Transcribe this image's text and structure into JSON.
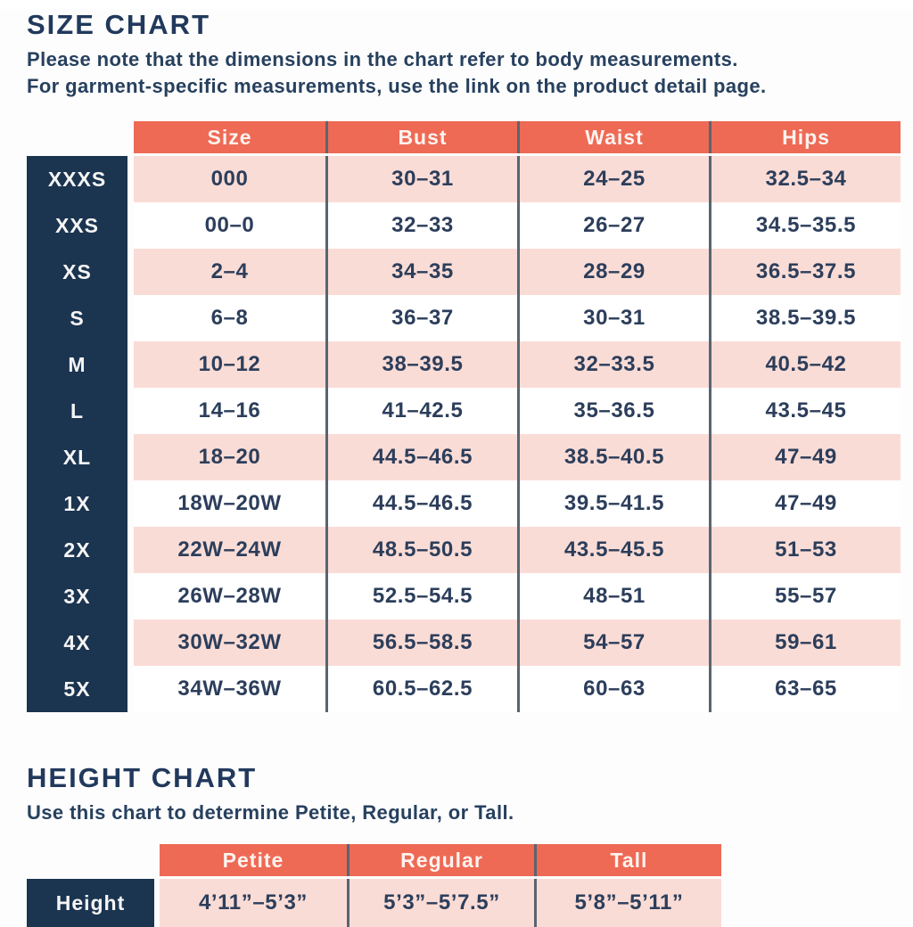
{
  "colors": {
    "header_coral": "#ee6a55",
    "row_pink": "#fadcd6",
    "label_navy": "#1b3450",
    "text_navy": "#27405e",
    "divider_slate": "#5a6470"
  },
  "size_chart": {
    "title": "SIZE CHART",
    "note_line1": "Please note that the dimensions in the chart refer to body measurements.",
    "note_line2": "For garment-specific measurements, use the link on the product detail page.",
    "columns": [
      "Size",
      "Bust",
      "Waist",
      "Hips"
    ],
    "rows": [
      {
        "label": "XXXS",
        "cells": [
          "000",
          "30–31",
          "24–25",
          "32.5–34"
        ]
      },
      {
        "label": "XXS",
        "cells": [
          "00–0",
          "32–33",
          "26–27",
          "34.5–35.5"
        ]
      },
      {
        "label": "XS",
        "cells": [
          "2–4",
          "34–35",
          "28–29",
          "36.5–37.5"
        ]
      },
      {
        "label": "S",
        "cells": [
          "6–8",
          "36–37",
          "30–31",
          "38.5–39.5"
        ]
      },
      {
        "label": "M",
        "cells": [
          "10–12",
          "38–39.5",
          "32–33.5",
          "40.5–42"
        ]
      },
      {
        "label": "L",
        "cells": [
          "14–16",
          "41–42.5",
          "35–36.5",
          "43.5–45"
        ]
      },
      {
        "label": "XL",
        "cells": [
          "18–20",
          "44.5–46.5",
          "38.5–40.5",
          "47–49"
        ]
      },
      {
        "label": "1X",
        "cells": [
          "18W–20W",
          "44.5–46.5",
          "39.5–41.5",
          "47–49"
        ]
      },
      {
        "label": "2X",
        "cells": [
          "22W–24W",
          "48.5–50.5",
          "43.5–45.5",
          "51–53"
        ]
      },
      {
        "label": "3X",
        "cells": [
          "26W–28W",
          "52.5–54.5",
          "48–51",
          "55–57"
        ]
      },
      {
        "label": "4X",
        "cells": [
          "30W–32W",
          "56.5–58.5",
          "54–57",
          "59–61"
        ]
      },
      {
        "label": "5X",
        "cells": [
          "34W–36W",
          "60.5–62.5",
          "60–63",
          "63–65"
        ]
      }
    ]
  },
  "height_chart": {
    "title": "HEIGHT CHART",
    "note": "Use this chart to determine Petite, Regular, or Tall.",
    "columns": [
      "Petite",
      "Regular",
      "Tall"
    ],
    "row_label": "Height",
    "values": [
      "4’11”–5’3”",
      "5’3”–5’7.5”",
      "5’8”–5’11”"
    ]
  }
}
